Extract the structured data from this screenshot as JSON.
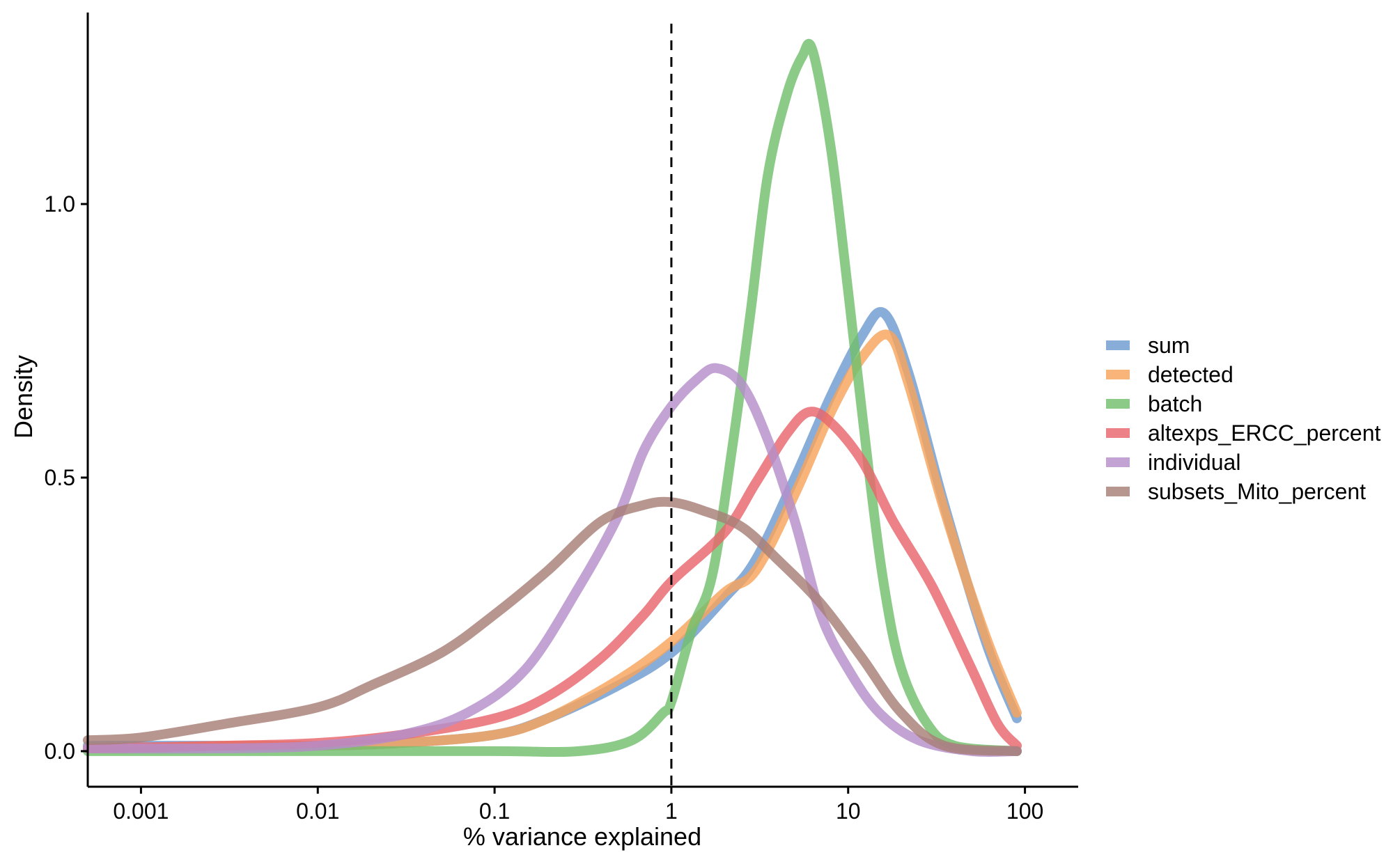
{
  "chart_data": {
    "type": "line",
    "title": "",
    "xlabel": "% variance explained",
    "ylabel": "Density",
    "x_scale": "log10",
    "xlim": [
      0.0005,
      200
    ],
    "ylim": [
      -0.065,
      1.35
    ],
    "x_ticks": [
      {
        "value": 0.001,
        "label": "0.001"
      },
      {
        "value": 0.01,
        "label": "0.01"
      },
      {
        "value": 0.1,
        "label": "0.1"
      },
      {
        "value": 1,
        "label": "1"
      },
      {
        "value": 10,
        "label": "10"
      },
      {
        "value": 100,
        "label": "100"
      }
    ],
    "y_ticks": [
      {
        "value": 0.0,
        "label": "0.0"
      },
      {
        "value": 0.5,
        "label": "0.5"
      },
      {
        "value": 1.0,
        "label": "1.0"
      }
    ],
    "reference_line": {
      "x": 1,
      "style": "dashed"
    },
    "grid": false,
    "legend_position": "right",
    "series": [
      {
        "name": "sum",
        "color": "#6f9bd1",
        "points": [
          [
            0.0005,
            0.01
          ],
          [
            0.001,
            0.01
          ],
          [
            0.003,
            0.01
          ],
          [
            0.01,
            0.01
          ],
          [
            0.03,
            0.015
          ],
          [
            0.1,
            0.03
          ],
          [
            0.2,
            0.06
          ],
          [
            0.5,
            0.12
          ],
          [
            1,
            0.18
          ],
          [
            2,
            0.28
          ],
          [
            3,
            0.35
          ],
          [
            5,
            0.5
          ],
          [
            8,
            0.65
          ],
          [
            12,
            0.76
          ],
          [
            16,
            0.8
          ],
          [
            22,
            0.69
          ],
          [
            35,
            0.45
          ],
          [
            60,
            0.2
          ],
          [
            90,
            0.06
          ]
        ]
      },
      {
        "name": "detected",
        "color": "#f7a35c",
        "points": [
          [
            0.0005,
            0.005
          ],
          [
            0.001,
            0.005
          ],
          [
            0.003,
            0.01
          ],
          [
            0.01,
            0.01
          ],
          [
            0.03,
            0.015
          ],
          [
            0.1,
            0.03
          ],
          [
            0.2,
            0.06
          ],
          [
            0.5,
            0.13
          ],
          [
            1,
            0.2
          ],
          [
            2,
            0.29
          ],
          [
            3,
            0.33
          ],
          [
            5,
            0.47
          ],
          [
            8,
            0.62
          ],
          [
            12,
            0.72
          ],
          [
            17,
            0.76
          ],
          [
            22,
            0.67
          ],
          [
            35,
            0.44
          ],
          [
            60,
            0.21
          ],
          [
            90,
            0.07
          ]
        ]
      },
      {
        "name": "batch",
        "color": "#72c06d",
        "points": [
          [
            0.0005,
            0.0
          ],
          [
            0.01,
            0.0
          ],
          [
            0.1,
            0.0
          ],
          [
            0.3,
            0.0
          ],
          [
            0.6,
            0.02
          ],
          [
            0.9,
            0.07
          ],
          [
            1.0,
            0.09
          ],
          [
            1.3,
            0.22
          ],
          [
            1.7,
            0.32
          ],
          [
            2.2,
            0.55
          ],
          [
            2.8,
            0.8
          ],
          [
            3.5,
            1.05
          ],
          [
            4.5,
            1.2
          ],
          [
            5.5,
            1.27
          ],
          [
            6.3,
            1.28
          ],
          [
            8,
            1.1
          ],
          [
            10,
            0.84
          ],
          [
            13,
            0.52
          ],
          [
            16,
            0.3
          ],
          [
            20,
            0.15
          ],
          [
            28,
            0.05
          ],
          [
            40,
            0.01
          ],
          [
            90,
            0.0
          ]
        ]
      },
      {
        "name": "altexps_ERCC_percent",
        "color": "#e8676d",
        "points": [
          [
            0.0005,
            0.005
          ],
          [
            0.003,
            0.01
          ],
          [
            0.01,
            0.015
          ],
          [
            0.03,
            0.03
          ],
          [
            0.1,
            0.06
          ],
          [
            0.2,
            0.1
          ],
          [
            0.4,
            0.17
          ],
          [
            0.7,
            0.25
          ],
          [
            1,
            0.31
          ],
          [
            2,
            0.4
          ],
          [
            3,
            0.49
          ],
          [
            4.5,
            0.58
          ],
          [
            6,
            0.62
          ],
          [
            8,
            0.6
          ],
          [
            12,
            0.53
          ],
          [
            18,
            0.42
          ],
          [
            30,
            0.3
          ],
          [
            50,
            0.15
          ],
          [
            70,
            0.05
          ],
          [
            90,
            0.01
          ]
        ]
      },
      {
        "name": "individual",
        "color": "#b48fcb",
        "points": [
          [
            0.0005,
            0.005
          ],
          [
            0.003,
            0.005
          ],
          [
            0.01,
            0.01
          ],
          [
            0.03,
            0.03
          ],
          [
            0.07,
            0.07
          ],
          [
            0.15,
            0.15
          ],
          [
            0.3,
            0.3
          ],
          [
            0.5,
            0.43
          ],
          [
            0.7,
            0.55
          ],
          [
            1,
            0.63
          ],
          [
            1.4,
            0.68
          ],
          [
            1.8,
            0.7
          ],
          [
            2.5,
            0.67
          ],
          [
            3.5,
            0.57
          ],
          [
            5,
            0.42
          ],
          [
            7,
            0.25
          ],
          [
            10,
            0.15
          ],
          [
            15,
            0.07
          ],
          [
            25,
            0.02
          ],
          [
            50,
            0.0
          ],
          [
            90,
            0.0
          ]
        ]
      },
      {
        "name": "subsets_Mito_percent",
        "color": "#a87f78",
        "points": [
          [
            0.0005,
            0.02
          ],
          [
            0.001,
            0.025
          ],
          [
            0.003,
            0.05
          ],
          [
            0.01,
            0.08
          ],
          [
            0.02,
            0.12
          ],
          [
            0.05,
            0.18
          ],
          [
            0.1,
            0.25
          ],
          [
            0.2,
            0.33
          ],
          [
            0.4,
            0.42
          ],
          [
            0.7,
            0.45
          ],
          [
            1,
            0.455
          ],
          [
            1.5,
            0.44
          ],
          [
            2.5,
            0.41
          ],
          [
            4,
            0.35
          ],
          [
            7,
            0.27
          ],
          [
            12,
            0.17
          ],
          [
            20,
            0.07
          ],
          [
            35,
            0.01
          ],
          [
            90,
            0.0
          ]
        ]
      }
    ]
  }
}
